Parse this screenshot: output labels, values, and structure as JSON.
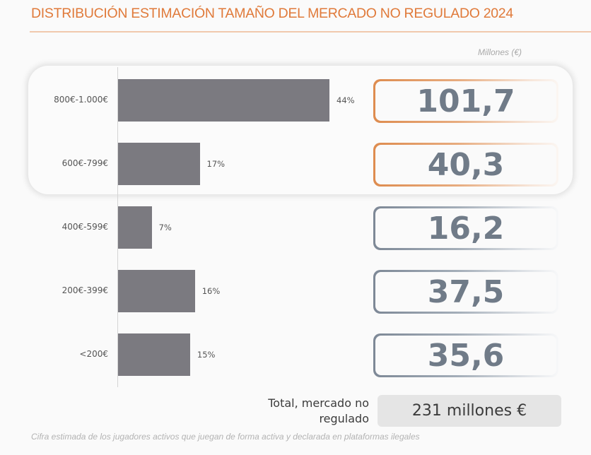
{
  "chart_data": {
    "type": "bar",
    "orientation": "horizontal",
    "title": "DISTRIBUCIÓN ESTIMACIÓN TAMAÑO DEL MERCADO NO REGULADO 2024",
    "unit_label": "Millones (€)",
    "categories": [
      "800€-1.000€",
      "600€-799€",
      "400€-599€",
      "200€-399€",
      "<200€"
    ],
    "percent_values": [
      44,
      17,
      7,
      16,
      15
    ],
    "percent_labels": [
      "44%",
      "17%",
      "7%",
      "16%",
      "15%"
    ],
    "amount_labels": [
      "101,7",
      "40,3",
      "16,2",
      "37,5",
      "35,6"
    ],
    "amounts": [
      101.7,
      40.3,
      16.2,
      37.5,
      35.6
    ],
    "highlighted": [
      true,
      true,
      false,
      false,
      false
    ],
    "xlim": [
      0,
      44
    ]
  },
  "total": {
    "label": "Total, mercado no regulado",
    "value": "231 millones €"
  },
  "footnote": "Cifra estimada de los jugadores activos que juegan de forma activa y declarada en plataformas ilegales",
  "colors": {
    "title": "#e07a3a",
    "bar": "#7b7a80",
    "highlight_border": "#de8c4f",
    "normal_border": "#7d8896",
    "value_text": "#707b88"
  }
}
